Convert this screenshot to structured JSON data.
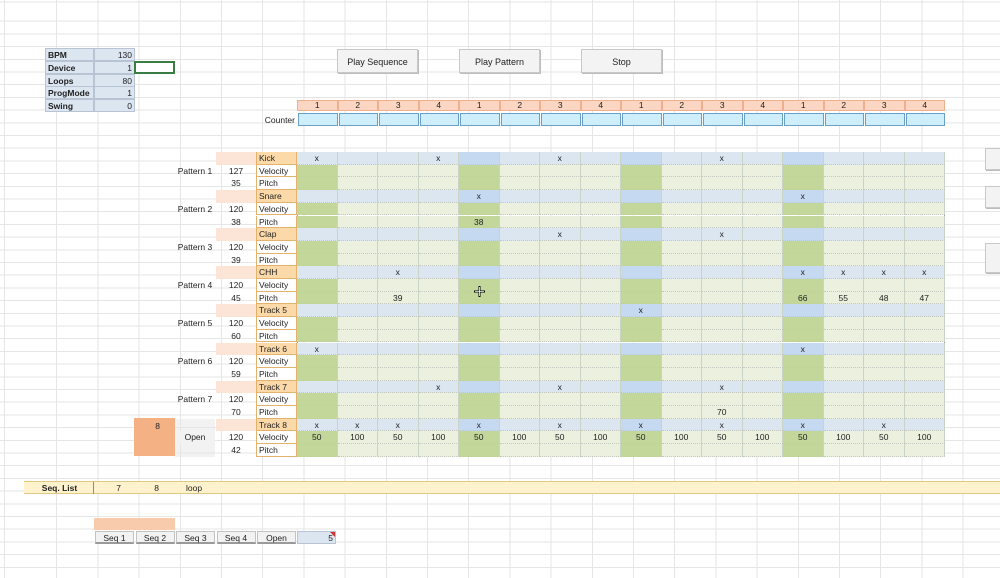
{
  "settings": [
    {
      "label": "BPM",
      "value": "130"
    },
    {
      "label": "Device",
      "value": "1"
    },
    {
      "label": "Loops",
      "value": "80"
    },
    {
      "label": "ProgMode",
      "value": "1"
    },
    {
      "label": "Swing",
      "value": "0"
    }
  ],
  "buttons": {
    "play_sequence": "Play Sequence",
    "play_pattern": "Play Pattern",
    "stop": "Stop"
  },
  "beats": [
    "1",
    "2",
    "3",
    "4",
    "1",
    "2",
    "3",
    "4",
    "1",
    "2",
    "3",
    "4",
    "1",
    "2",
    "3",
    "4"
  ],
  "counter_label": "Counter",
  "patterns": [
    {
      "name": "Pattern 1",
      "track": "Kick",
      "velocity": "127",
      "pitch": "35",
      "steps": [
        "x",
        "",
        "",
        "x",
        "",
        "",
        "x",
        "",
        "",
        "",
        "x",
        "",
        "",
        "",
        "",
        ""
      ],
      "vel_vals": [
        "",
        "",
        "",
        "",
        "",
        "",
        "",
        "",
        "",
        "",
        "",
        "",
        "",
        "",
        "",
        ""
      ],
      "pitch_vals": [
        "",
        "",
        "",
        "",
        "",
        "",
        "",
        "",
        "",
        "",
        "",
        "",
        "",
        "",
        "",
        ""
      ]
    },
    {
      "name": "Pattern 2",
      "track": "Snare",
      "velocity": "120",
      "pitch": "38",
      "steps": [
        "",
        "",
        "",
        "",
        "x",
        "",
        "",
        "",
        "",
        "",
        "",
        "",
        "x",
        "",
        "",
        ""
      ],
      "vel_vals": [
        "",
        "",
        "",
        "",
        "",
        "",
        "",
        "",
        "",
        "",
        "",
        "",
        "",
        "",
        "",
        ""
      ],
      "pitch_vals": [
        "",
        "",
        "",
        "",
        "38",
        "",
        "",
        "",
        "",
        "",
        "",
        "",
        "",
        "",
        "",
        ""
      ]
    },
    {
      "name": "Pattern 3",
      "track": "Clap",
      "velocity": "120",
      "pitch": "39",
      "steps": [
        "",
        "",
        "",
        "",
        "",
        "",
        "x",
        "",
        "",
        "",
        "x",
        "",
        "",
        "",
        "",
        ""
      ],
      "vel_vals": [
        "",
        "",
        "",
        "",
        "",
        "",
        "",
        "",
        "",
        "",
        "",
        "",
        "",
        "",
        "",
        ""
      ],
      "pitch_vals": [
        "",
        "",
        "",
        "",
        "",
        "",
        "",
        "",
        "",
        "",
        "",
        "",
        "",
        "",
        "",
        ""
      ]
    },
    {
      "name": "Pattern 4",
      "track": "CHH",
      "velocity": "120",
      "pitch": "45",
      "steps": [
        "",
        "",
        "x",
        "",
        "",
        "",
        "",
        "",
        "",
        "",
        "",
        "",
        "x",
        "x",
        "x",
        "x"
      ],
      "vel_vals": [
        "",
        "",
        "",
        "",
        "",
        "",
        "",
        "",
        "",
        "",
        "",
        "",
        "",
        "",
        "",
        ""
      ],
      "pitch_vals": [
        "",
        "",
        "39",
        "",
        "",
        "",
        "",
        "",
        "",
        "",
        "",
        "",
        "66",
        "55",
        "48",
        "47"
      ]
    },
    {
      "name": "Pattern 5",
      "track": "Track 5",
      "velocity": "120",
      "pitch": "60",
      "steps": [
        "",
        "",
        "",
        "",
        "",
        "",
        "",
        "",
        "x",
        "",
        "",
        "",
        "",
        "",
        "",
        ""
      ],
      "vel_vals": [
        "",
        "",
        "",
        "",
        "",
        "",
        "",
        "",
        "",
        "",
        "",
        "",
        "",
        "",
        "",
        ""
      ],
      "pitch_vals": [
        "",
        "",
        "",
        "",
        "",
        "",
        "",
        "",
        "",
        "",
        "",
        "",
        "",
        "",
        "",
        ""
      ]
    },
    {
      "name": "Pattern 6",
      "track": "Track 6",
      "velocity": "120",
      "pitch": "59",
      "steps": [
        "x",
        "",
        "",
        "",
        "",
        "",
        "",
        "",
        "",
        "",
        "",
        "",
        "x",
        "",
        "",
        ""
      ],
      "vel_vals": [
        "",
        "",
        "",
        "",
        "",
        "",
        "",
        "",
        "",
        "",
        "",
        "",
        "",
        "",
        "",
        ""
      ],
      "pitch_vals": [
        "",
        "",
        "",
        "",
        "",
        "",
        "",
        "",
        "",
        "",
        "",
        "",
        "",
        "",
        "",
        ""
      ]
    },
    {
      "name": "Pattern 7",
      "track": "Track 7",
      "velocity": "120",
      "pitch": "70",
      "steps": [
        "",
        "",
        "",
        "x",
        "",
        "",
        "x",
        "",
        "",
        "",
        "x",
        "",
        "",
        "",
        "",
        ""
      ],
      "vel_vals": [
        "",
        "",
        "",
        "",
        "",
        "",
        "",
        "",
        "",
        "",
        "",
        "",
        "",
        "",
        "",
        ""
      ],
      "pitch_vals": [
        "",
        "",
        "",
        "",
        "",
        "",
        "",
        "",
        "",
        "",
        "70",
        "",
        "",
        "",
        "",
        ""
      ]
    },
    {
      "name": "Open",
      "track": "Track 8",
      "velocity": "120",
      "pitch": "42",
      "steps": [
        "x",
        "x",
        "x",
        "",
        "x",
        "",
        "x",
        "",
        "x",
        "",
        "x",
        "",
        "x",
        "",
        "x",
        ""
      ],
      "vel_vals": [
        "50",
        "100",
        "50",
        "100",
        "50",
        "100",
        "50",
        "100",
        "50",
        "100",
        "50",
        "100",
        "50",
        "100",
        "50",
        "100"
      ],
      "pitch_vals": [
        "",
        "",
        "",
        "",
        "",
        "",
        "",
        "",
        "",
        "",
        "",
        "",
        "",
        "",
        "",
        ""
      ]
    }
  ],
  "row_labels": {
    "velocity": "Velocity",
    "pitch": "Pitch"
  },
  "selected_pattern": "8",
  "seq_list": {
    "label": "Seq. List",
    "values": [
      "7",
      "8"
    ],
    "mode": "loop"
  },
  "seq_buttons": [
    "Seq 1",
    "Seq 2",
    "Seq 3",
    "Seq 4",
    "Open"
  ],
  "seq_value": "5",
  "colors": {
    "accent_orange": "#fbd7c3",
    "counter_blue": "#cfeefb",
    "grid_blue": "#dce6f1",
    "grid_green": "#e6efda",
    "beat_col": "#c4d79b"
  }
}
